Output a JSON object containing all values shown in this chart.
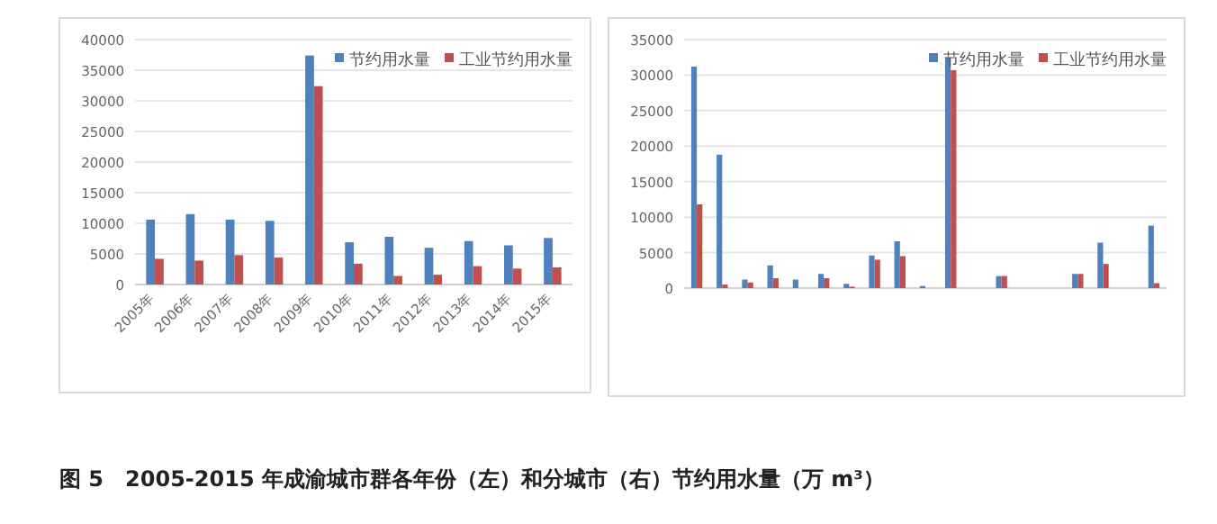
{
  "chart_data": [
    {
      "type": "bar",
      "categories": [
        "2005年",
        "2006年",
        "2007年",
        "2008年",
        "2009年",
        "2010年",
        "2011年",
        "2012年",
        "2013年",
        "2014年",
        "2015年"
      ],
      "series": [
        {
          "name": "节约用水量",
          "color": "#4f81bd",
          "values": [
            10600,
            11500,
            10600,
            10400,
            37400,
            6900,
            7800,
            6000,
            7100,
            6400,
            7600
          ]
        },
        {
          "name": "工业节约用水量",
          "color": "#c0504d",
          "values": [
            4200,
            3900,
            4800,
            4400,
            32400,
            3400,
            1400,
            1600,
            3000,
            2600,
            2800
          ]
        }
      ],
      "ylim": [
        0,
        40000
      ],
      "yticks": [
        0,
        5000,
        10000,
        15000,
        20000,
        25000,
        30000,
        35000,
        40000
      ],
      "grid": "y",
      "legend": "top right",
      "annotations": [
        "图 5　2005-2015 年成渝城市群各年份（左）和分城市（右）节约用水量（万 m³）"
      ]
    },
    {
      "type": "bar",
      "categories": [
        null,
        null,
        null,
        null,
        null,
        null,
        null,
        null,
        null,
        null,
        null,
        null,
        null,
        null,
        null,
        null,
        null,
        null,
        null
      ],
      "series": [
        {
          "name": "节约用水量",
          "color": "#4f81bd",
          "values": [
            31200,
            18800,
            1200,
            3200,
            1200,
            2000,
            600,
            4600,
            6600,
            300,
            32500,
            null,
            1700,
            null,
            null,
            2000,
            6400,
            null,
            8800
          ]
        },
        {
          "name": "工业节约用水量",
          "color": "#c0504d",
          "values": [
            11800,
            500,
            800,
            1400,
            null,
            1400,
            200,
            4000,
            4500,
            null,
            30700,
            null,
            1700,
            null,
            null,
            2000,
            3400,
            null,
            700
          ]
        }
      ],
      "ylim": [
        0,
        35000
      ],
      "yticks": [
        0,
        5000,
        10000,
        15000,
        20000,
        25000,
        30000,
        35000
      ],
      "grid": "y",
      "legend": "top right"
    }
  ]
}
